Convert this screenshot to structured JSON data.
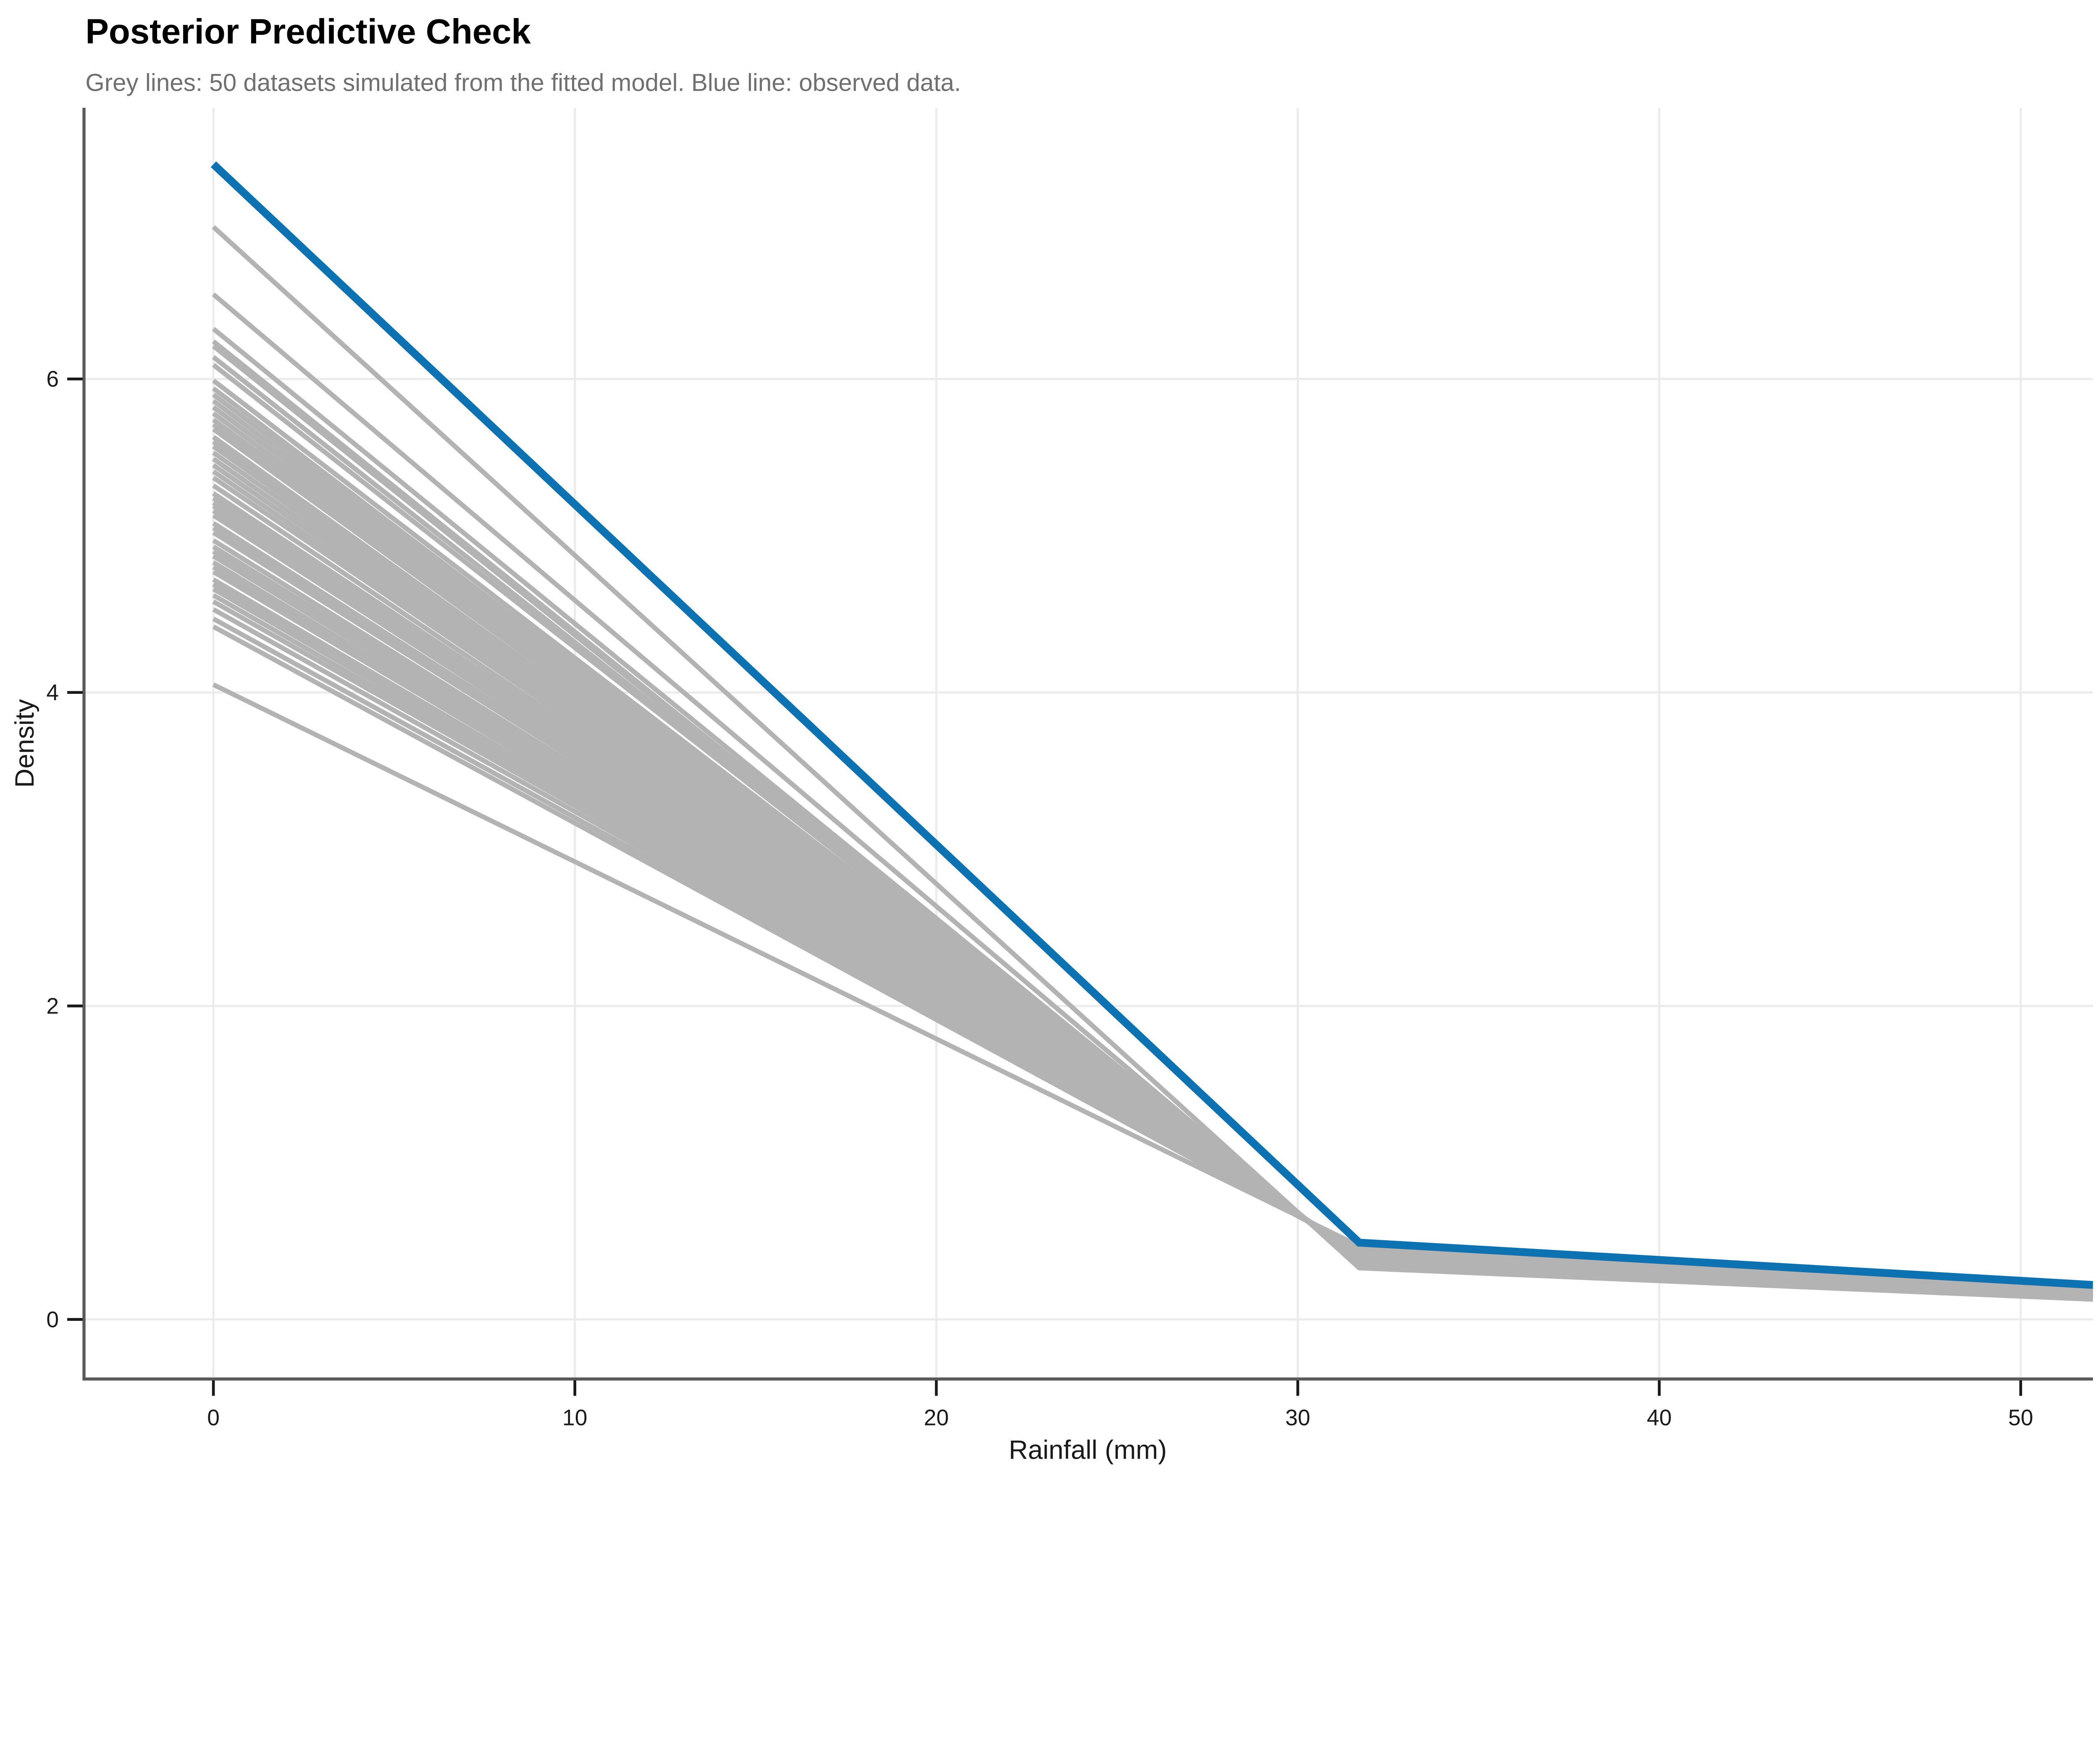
{
  "header": {
    "title": "Posterior Predictive Check",
    "subtitle": "Grey lines: 50 datasets simulated from the fitted model. Blue line: observed data."
  },
  "colors": {
    "observed_blue": "#0C72B2",
    "simulated_grey": "#B3B3B3",
    "grid": "#EBEBEB",
    "axis_line": "#5A5A5A",
    "tick_mark": "#1A1A1A",
    "tick_text": "#1A1A1A",
    "subtitle_text": "#707070",
    "background": "#FFFFFF"
  },
  "chart_data": {
    "type": "line",
    "title": "Posterior Predictive Check",
    "subtitle": "Grey lines: 50 datasets simulated from the fitted model. Blue line: observed data.",
    "xlabel": "Rainfall (mm)",
    "ylabel": "Density",
    "x_ticks": [
      0,
      10,
      20,
      30,
      40,
      50
    ],
    "y_ticks": [
      0,
      2,
      4,
      6
    ],
    "xlim": [
      -3.58,
      52.0
    ],
    "ylim": [
      -0.38,
      7.73
    ],
    "grid": "major-only",
    "legend_position": "none",
    "n_simulated": 50,
    "x_vertices": [
      0,
      31.7,
      52.0
    ],
    "observed": {
      "name": "observed data",
      "densities": [
        7.37,
        0.49,
        0.22
      ]
    },
    "simulated": {
      "name": "simulated datasets",
      "densities": [
        [
          6.97,
          0.328,
          0.128
        ],
        [
          6.54,
          0.352,
          0.141
        ],
        [
          6.32,
          0.358,
          0.144
        ],
        [
          6.24,
          0.368,
          0.15
        ],
        [
          6.21,
          0.362,
          0.146
        ],
        [
          6.14,
          0.373,
          0.152
        ],
        [
          6.09,
          0.369,
          0.149
        ],
        [
          5.99,
          0.38,
          0.155
        ],
        [
          5.94,
          0.376,
          0.152
        ],
        [
          5.9,
          0.384,
          0.157
        ],
        [
          5.86,
          0.38,
          0.155
        ],
        [
          5.82,
          0.388,
          0.16
        ],
        [
          5.78,
          0.384,
          0.156
        ],
        [
          5.74,
          0.392,
          0.161
        ],
        [
          5.71,
          0.387,
          0.158
        ],
        [
          5.68,
          0.395,
          0.163
        ],
        [
          5.63,
          0.391,
          0.16
        ],
        [
          5.6,
          0.398,
          0.165
        ],
        [
          5.57,
          0.394,
          0.162
        ],
        [
          5.53,
          0.402,
          0.166
        ],
        [
          5.49,
          0.398,
          0.164
        ],
        [
          5.45,
          0.406,
          0.168
        ],
        [
          5.41,
          0.402,
          0.165
        ],
        [
          5.37,
          0.41,
          0.17
        ],
        [
          5.32,
          0.406,
          0.167
        ],
        [
          5.27,
          0.414,
          0.172
        ],
        [
          5.24,
          0.41,
          0.169
        ],
        [
          5.21,
          0.416,
          0.173
        ],
        [
          5.19,
          0.412,
          0.17
        ],
        [
          5.16,
          0.419,
          0.174
        ],
        [
          5.13,
          0.415,
          0.172
        ],
        [
          5.08,
          0.423,
          0.176
        ],
        [
          5.05,
          0.419,
          0.174
        ],
        [
          5.02,
          0.426,
          0.178
        ],
        [
          4.97,
          0.422,
          0.175
        ],
        [
          4.93,
          0.43,
          0.18
        ],
        [
          4.9,
          0.426,
          0.177
        ],
        [
          4.87,
          0.433,
          0.181
        ],
        [
          4.83,
          0.429,
          0.179
        ],
        [
          4.8,
          0.436,
          0.183
        ],
        [
          4.77,
          0.432,
          0.18
        ],
        [
          4.72,
          0.44,
          0.185
        ],
        [
          4.69,
          0.436,
          0.182
        ],
        [
          4.66,
          0.443,
          0.186
        ],
        [
          4.62,
          0.439,
          0.184
        ],
        [
          4.58,
          0.446,
          0.188
        ],
        [
          4.53,
          0.442,
          0.186
        ],
        [
          4.47,
          0.45,
          0.19
        ],
        [
          4.42,
          0.446,
          0.188
        ],
        [
          4.05,
          0.468,
          0.198
        ]
      ]
    }
  }
}
